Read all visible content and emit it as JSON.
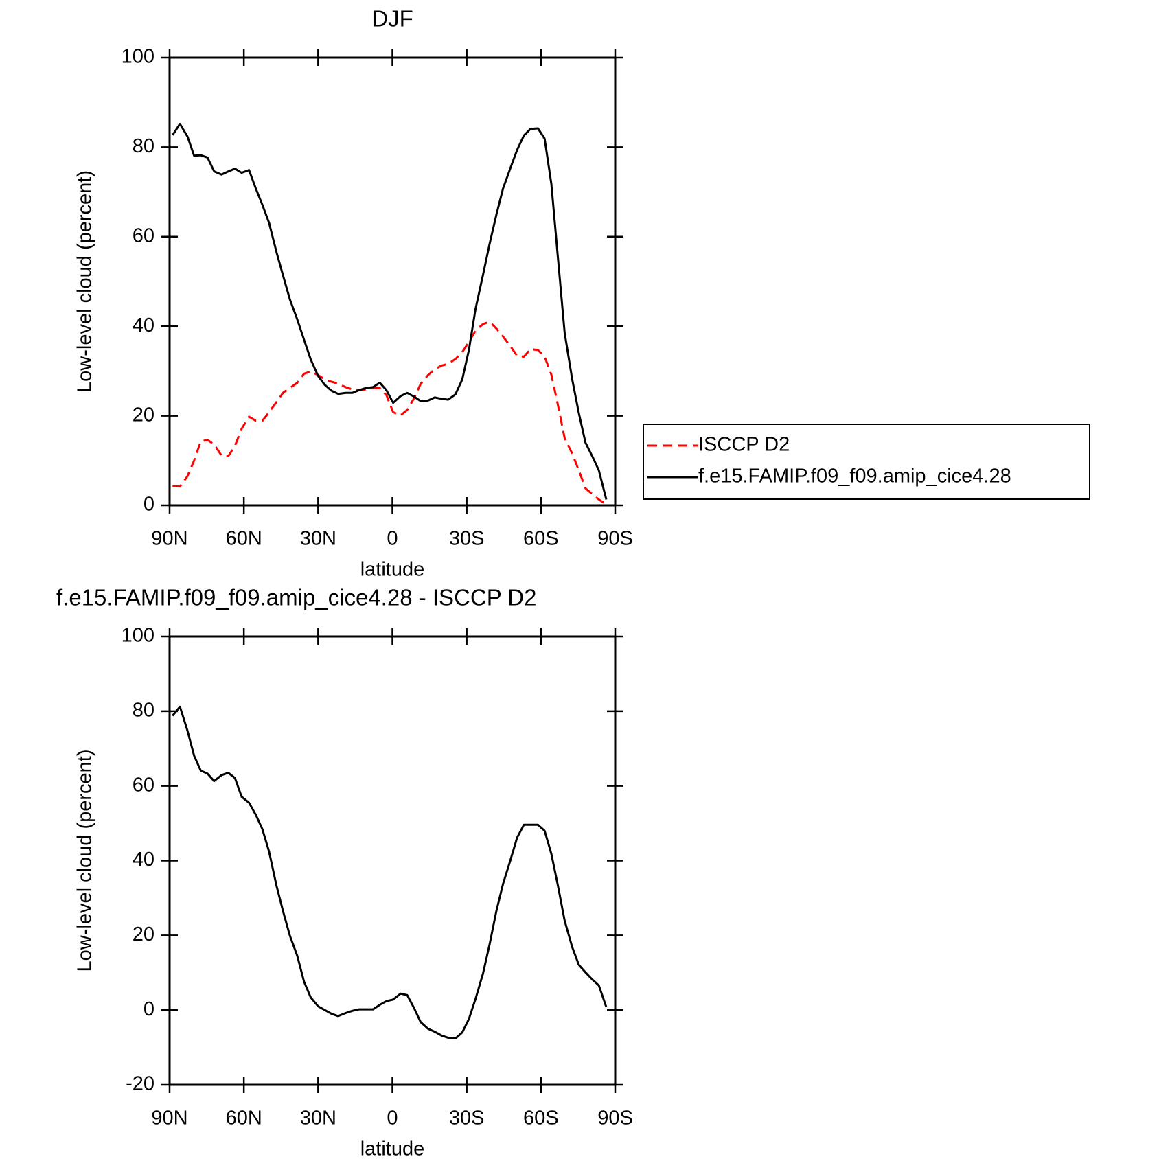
{
  "chart_data": [
    {
      "type": "line",
      "title": "DJF",
      "xlabel": "latitude",
      "ylabel": "Low-level cloud (percent)",
      "x": [
        88.8,
        85.8,
        82.8,
        80.1,
        77.4,
        74.7,
        72,
        69,
        66.3,
        63.6,
        60.9,
        57.9,
        55.2,
        52.5,
        49.8,
        46.8,
        44.1,
        41.4,
        38.4,
        35.7,
        33,
        30,
        27.3,
        24.6,
        21.9,
        18.9,
        16.2,
        13.5,
        10.8,
        7.8,
        5.1,
        2.4,
        -0.3,
        -3.3,
        -6,
        -8.7,
        -11.4,
        -14.4,
        -17.1,
        -19.8,
        -22.5,
        -25.5,
        -28.2,
        -30.9,
        -33.6,
        -36.6,
        -39.3,
        -42,
        -44.7,
        -47.7,
        -50.4,
        -53.1,
        -55.8,
        -58.8,
        -61.5,
        -64.2,
        -66.9,
        -69.6,
        -72.6,
        -75.3,
        -78,
        -80.7,
        -83.4,
        -86.4
      ],
      "series": [
        {
          "name": "ISCCP D2",
          "color": "#ff0000",
          "dashed": true,
          "values": [
            4.3,
            4.2,
            6.5,
            10,
            14.3,
            14.6,
            13.6,
            11.1,
            11,
            13.3,
            17.1,
            19.8,
            18.9,
            18.9,
            20.8,
            23.1,
            25.2,
            26.2,
            27.4,
            29.4,
            29.9,
            29.1,
            28.1,
            27.6,
            27.2,
            26.4,
            25.9,
            25.7,
            25.9,
            26.2,
            26.2,
            24.6,
            20.8,
            20.1,
            21.3,
            23.9,
            27.1,
            29.1,
            30.4,
            31.2,
            31.6,
            32.7,
            34.2,
            36.5,
            39,
            40.5,
            41,
            39.5,
            37.7,
            35.5,
            33.4,
            33.2,
            34.9,
            34.7,
            33.2,
            29.2,
            22.3,
            15,
            11.6,
            7.8,
            3.8,
            2.5,
            1.3,
            0.2
          ]
        },
        {
          "name": "f.e15.FAMIP.f09_f09.amip_cice4.28",
          "color": "#000000",
          "dashed": false,
          "values": [
            82.7,
            85.2,
            82.4,
            78.1,
            78.2,
            77.7,
            74.6,
            73.9,
            74.6,
            75.2,
            74.3,
            74.9,
            70.8,
            67.1,
            63.1,
            56.5,
            51.2,
            46,
            41.5,
            37,
            32.6,
            28.9,
            26.9,
            25.6,
            24.9,
            25.1,
            25.1,
            25.7,
            26.2,
            26.4,
            27.4,
            25.7,
            22.9,
            24.4,
            25.1,
            24.3,
            23.3,
            23.4,
            24.1,
            23.8,
            23.6,
            24.8,
            28.1,
            34.7,
            43.9,
            51.5,
            58.5,
            64.9,
            70.8,
            75.4,
            79.4,
            82.6,
            84.1,
            84.2,
            81.9,
            71.8,
            55.1,
            38.5,
            28.2,
            20.6,
            14,
            11,
            7.8,
            1.3
          ]
        }
      ],
      "xlim": [
        90,
        -90
      ],
      "xticks": [
        {
          "value": 90,
          "label": "90N"
        },
        {
          "value": 60,
          "label": "60N"
        },
        {
          "value": 30,
          "label": "30N"
        },
        0,
        {
          "value": -30,
          "label": "30S"
        },
        {
          "value": -60,
          "label": "60S"
        },
        {
          "value": -90,
          "label": "90S"
        }
      ],
      "ylim": [
        0,
        100
      ],
      "yticks": [
        0,
        20,
        40,
        60,
        80,
        100
      ],
      "legend": "right"
    },
    {
      "type": "line",
      "title": "f.e15.FAMIP.f09_f09.amip_cice4.28 - ISCCP D2",
      "xlabel": "latitude",
      "ylabel": "Low-level cloud (percent)",
      "x": [
        88.8,
        85.8,
        82.8,
        80.1,
        77.4,
        74.7,
        72,
        69,
        66.3,
        63.6,
        60.9,
        57.9,
        55.2,
        52.5,
        49.8,
        46.8,
        44.1,
        41.4,
        38.4,
        35.7,
        33,
        30,
        27.3,
        24.6,
        21.9,
        18.9,
        16.2,
        13.5,
        10.8,
        7.8,
        5.1,
        2.4,
        -0.3,
        -3.3,
        -6,
        -8.7,
        -11.4,
        -14.4,
        -17.1,
        -19.8,
        -22.5,
        -25.5,
        -28.2,
        -30.9,
        -33.6,
        -36.6,
        -39.3,
        -42,
        -44.7,
        -47.7,
        -50.4,
        -53.1,
        -55.8,
        -58.8,
        -61.5,
        -64.2,
        -66.9,
        -69.6,
        -72.6,
        -75.3,
        -78,
        -80.7,
        -83.4,
        -86.4
      ],
      "series": [
        {
          "color": "#000000",
          "dashed": false,
          "values": [
            78.8,
            81.2,
            74.8,
            68.1,
            64.1,
            63.3,
            61.3,
            62.9,
            63.5,
            62.1,
            57.1,
            55.5,
            52.3,
            48.4,
            42.4,
            33.2,
            26.3,
            19.9,
            14.5,
            7.6,
            3.4,
            1,
            0,
            -1,
            -1.6,
            -0.8,
            -0.2,
            0.2,
            0.2,
            0.2,
            1.4,
            2.4,
            2.8,
            4.4,
            4,
            0.6,
            -3.2,
            -5,
            -5.8,
            -6.8,
            -7.4,
            -7.6,
            -6,
            -2.4,
            3,
            9.8,
            17.7,
            26.5,
            33.8,
            40.2,
            46.2,
            49.6,
            49.6,
            49.6,
            48,
            41.8,
            33.2,
            23.9,
            16.9,
            12.1,
            10.1,
            8.2,
            6.6,
            0.8
          ]
        }
      ],
      "xlim": [
        90,
        -90
      ],
      "xticks": [
        {
          "value": 90,
          "label": "90N"
        },
        {
          "value": 60,
          "label": "60N"
        },
        {
          "value": 30,
          "label": "30N"
        },
        0,
        {
          "value": -30,
          "label": "30S"
        },
        {
          "value": -60,
          "label": "60S"
        },
        {
          "value": -90,
          "label": "90S"
        }
      ],
      "ylim": [
        -20,
        100
      ],
      "yticks": [
        -20,
        0,
        20,
        40,
        60,
        80,
        100
      ]
    }
  ]
}
